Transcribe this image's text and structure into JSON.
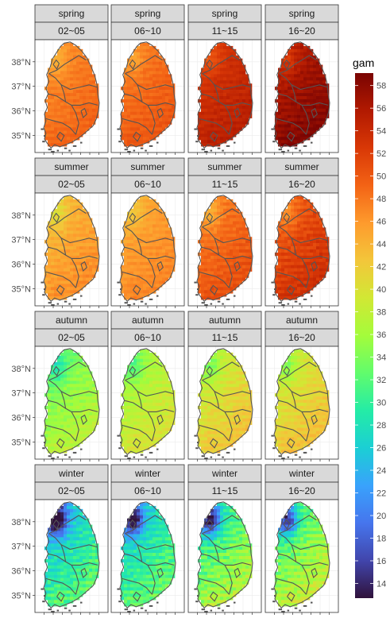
{
  "chart_data": {
    "type": "heatmap",
    "title": "",
    "xlabel": "",
    "ylabel": "",
    "rows": [
      "spring",
      "summer",
      "autumn",
      "winter"
    ],
    "columns": [
      "02~05",
      "06~10",
      "11~15",
      "16~20"
    ],
    "y_ticks": [
      "38°N",
      "37°N",
      "36°N",
      "35°N"
    ],
    "y_tick_values": [
      38,
      37,
      36,
      35
    ],
    "ylim": [
      34.3,
      38.9
    ],
    "grid": true,
    "legend": {
      "title": "gam",
      "position": "right",
      "ticks": [
        14,
        16,
        18,
        20,
        22,
        24,
        26,
        28,
        30,
        32,
        34,
        36,
        38,
        40,
        42,
        44,
        46,
        48,
        50,
        52,
        54,
        56,
        58
      ],
      "range": [
        12.7,
        59.1
      ],
      "colors": [
        "#30123b",
        "#4145ab",
        "#4675ed",
        "#39a2fc",
        "#1bcfd4",
        "#24eca6",
        "#61fc6c",
        "#a4fc3b",
        "#d1e834",
        "#f3c63a",
        "#fe9b2d",
        "#f36315",
        "#d93806",
        "#b11901",
        "#7a0402"
      ]
    },
    "panel_mean_values": [
      [
        47.5,
        48.5,
        53.5,
        56.5
      ],
      [
        44.5,
        45.5,
        48.5,
        51.0
      ],
      [
        34.5,
        37.0,
        39.5,
        40.0
      ],
      [
        27.0,
        28.0,
        31.5,
        33.0
      ]
    ],
    "panel_min_values": [
      [
        44,
        45,
        50,
        52
      ],
      [
        40,
        42,
        44,
        46
      ],
      [
        28,
        31,
        33,
        34
      ],
      [
        16,
        18,
        20,
        22
      ]
    ]
  },
  "colors": {
    "strip_fill": "#d9d9d9",
    "strip_border": "#333333",
    "panel_border": "#333333",
    "grid": "#ebebeb",
    "boundary": "#555555"
  }
}
